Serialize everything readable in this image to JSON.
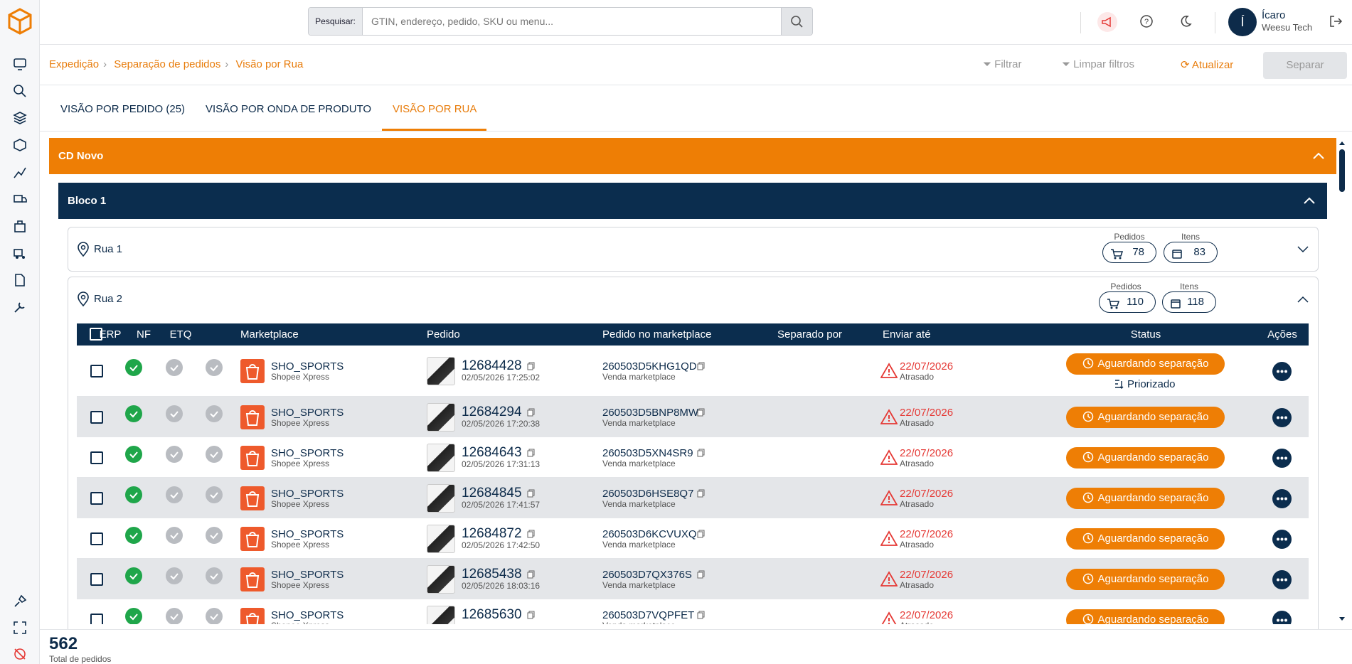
{
  "header": {
    "search_label": "Pesquisar:",
    "search_placeholder": "GTIN, endereço, pedido, SKU ou menu...",
    "user_initial": "Í",
    "user_name": "Ícaro",
    "user_company": "Weesu Tech"
  },
  "breadcrumb": [
    "Expedição",
    "Separação de pedidos",
    "Visão por Rua"
  ],
  "actions": [
    "Filtrar",
    "Limpar filtros",
    "Atualizar",
    "Separar"
  ],
  "tabs": [
    "VISÃO POR PEDIDO (25)",
    "VISÃO POR ONDA DE PRODUTO",
    "VISÃO POR RUA"
  ],
  "section": "CD Novo",
  "block": "Bloco 1",
  "streets": [
    {
      "name": "Rua 1",
      "pedidos_label": "Pedidos",
      "pedidos": 78,
      "itens_label": "Itens",
      "itens": 83
    },
    {
      "name": "Rua 2",
      "pedidos_label": "Pedidos",
      "pedidos": 110,
      "itens_label": "Itens",
      "itens": 118
    }
  ],
  "table": {
    "columns": [
      "ERP",
      "NF",
      "ETQ",
      "Marketplace",
      "Pedido",
      "Pedido no marketplace",
      "Separado por",
      "Enviar até",
      "Status",
      "Ações"
    ],
    "rows": [
      {
        "marketplace": "SHO_SPORTS",
        "carrier": "Shopee Xpress",
        "order": "12684428",
        "date": "02/05/2026 17:25:02",
        "marketplace_order": "260503D5KHG1QD",
        "origin": "Venda marketplace",
        "ship_by": "22/07/2026",
        "delay": "Atrasado",
        "status": "Aguardando separação",
        "tag": "Priorizado"
      },
      {
        "marketplace": "SHO_SPORTS",
        "carrier": "Shopee Xpress",
        "order": "12684294",
        "date": "02/05/2026 17:20:38",
        "marketplace_order": "260503D5BNP8MW",
        "origin": "Venda marketplace",
        "ship_by": "22/07/2026",
        "delay": "Atrasado",
        "status": "Aguardando separação"
      },
      {
        "marketplace": "SHO_SPORTS",
        "carrier": "Shopee Xpress",
        "order": "12684643",
        "date": "02/05/2026 17:31:13",
        "marketplace_order": "260503D5XN4SR9",
        "origin": "Venda marketplace",
        "ship_by": "22/07/2026",
        "delay": "Atrasado",
        "status": "Aguardando separação"
      },
      {
        "marketplace": "SHO_SPORTS",
        "carrier": "Shopee Xpress",
        "order": "12684845",
        "date": "02/05/2026 17:41:57",
        "marketplace_order": "260503D6HSE8Q7",
        "origin": "Venda marketplace",
        "ship_by": "22/07/2026",
        "delay": "Atrasado",
        "status": "Aguardando separação"
      },
      {
        "marketplace": "SHO_SPORTS",
        "carrier": "Shopee Xpress",
        "order": "12684872",
        "date": "02/05/2026 17:42:50",
        "marketplace_order": "260503D6KCVUXQ",
        "origin": "Venda marketplace",
        "ship_by": "22/07/2026",
        "delay": "Atrasado",
        "status": "Aguardando separação"
      },
      {
        "marketplace": "SHO_SPORTS",
        "carrier": "Shopee Xpress",
        "order": "12685438",
        "date": "02/05/2026 18:03:16",
        "marketplace_order": "260503D7QX376S",
        "origin": "Venda marketplace",
        "ship_by": "22/07/2026",
        "delay": "Atrasado",
        "status": "Aguardando separação"
      },
      {
        "marketplace": "SHO_SPORTS",
        "carrier": "Shopee Xpress",
        "order": "12685630",
        "marketplace_order": "260503D7VQPFET",
        "origin": "Venda marketplace",
        "ship_by": "22/07/2026",
        "delay": "Atrasado",
        "status": "Aguardando separação"
      }
    ]
  },
  "footer": {
    "total": 562,
    "total_label": "Total de pedidos"
  }
}
